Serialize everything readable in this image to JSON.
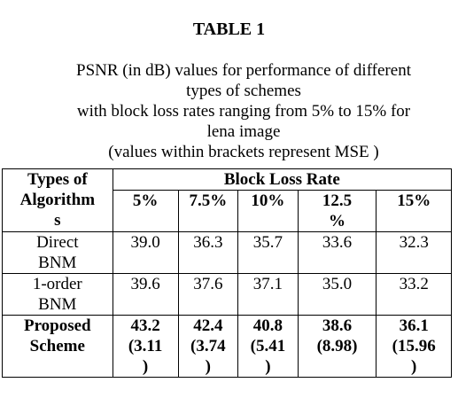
{
  "title": "TABLE 1",
  "caption": {
    "lines": [
      "PSNR (in dB) values for performance of different",
      "types of schemes",
      "with block loss rates ranging from 5% to 15% for",
      "lena image",
      "(values within brackets represent MSE )"
    ]
  },
  "table": {
    "row_header": [
      "Types of",
      "Algorithm",
      "s"
    ],
    "group_header": "Block Loss Rate",
    "columns": [
      "5%",
      "7.5%",
      "10%",
      "12.5",
      "%",
      "15%"
    ],
    "rows": [
      {
        "label": [
          "Direct",
          "BNM"
        ],
        "values": [
          "39.0",
          "36.3",
          "35.7",
          "33.6",
          "32.3"
        ]
      },
      {
        "label": [
          "1-order",
          "BNM"
        ],
        "values": [
          "39.6",
          "37.6",
          "37.1",
          "35.0",
          "33.2"
        ]
      },
      {
        "label": [
          "Proposed",
          "Scheme"
        ],
        "values": [
          "43.2",
          "42.4",
          "40.8",
          "38.6",
          "36.1"
        ],
        "mse": [
          "(3.11",
          "(3.74",
          "(5.41",
          "(8.98)",
          "(15.96"
        ],
        "mse_close": [
          ")",
          ")",
          ")",
          "",
          ")"
        ]
      }
    ]
  }
}
